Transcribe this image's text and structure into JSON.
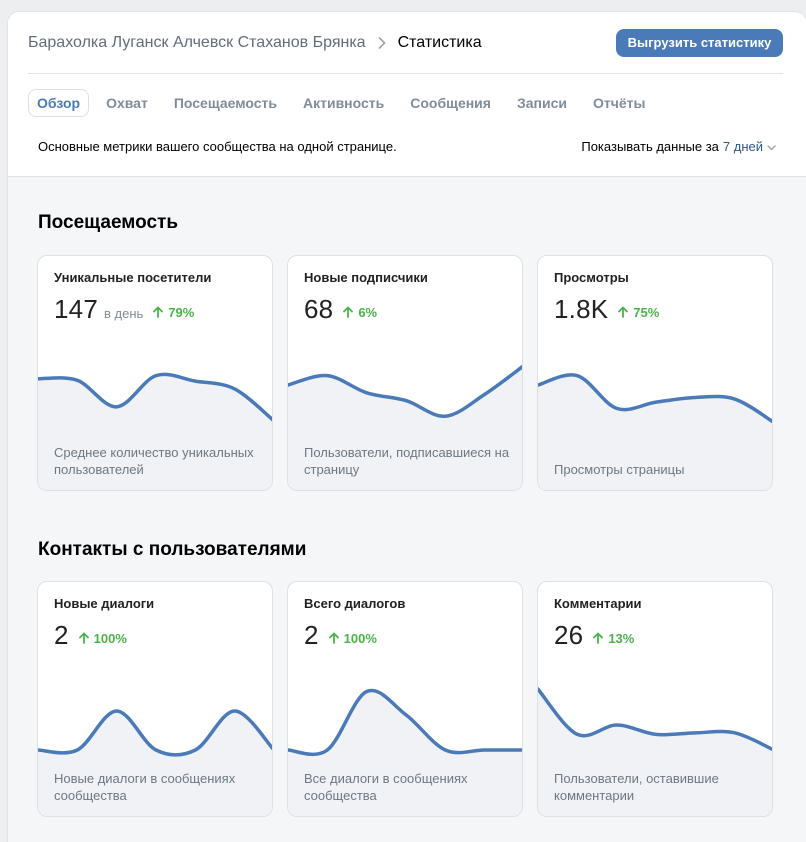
{
  "breadcrumb": {
    "group": "Барахолка Луганск Алчевск Стаханов Брянка",
    "current": "Статистика"
  },
  "export_label": "Выгрузить статистику",
  "tabs": [
    {
      "label": "Обзор",
      "active": true
    },
    {
      "label": "Охват",
      "active": false
    },
    {
      "label": "Посещаемость",
      "active": false
    },
    {
      "label": "Активность",
      "active": false
    },
    {
      "label": "Сообщения",
      "active": false
    },
    {
      "label": "Записи",
      "active": false
    },
    {
      "label": "Отчёты",
      "active": false
    }
  ],
  "description": "Основные метрики вашего сообщества на одной странице.",
  "period": {
    "label": "Показывать данные за",
    "value": "7 дней"
  },
  "colors": {
    "accent": "#4a7ab8",
    "positive": "#4bb34b",
    "line": "#4a7ab8",
    "area": "#f0f2f5"
  },
  "sections": [
    {
      "title": "Посещаемость",
      "cards": [
        {
          "title": "Уникальные посетители",
          "value": "147",
          "unit": "в день",
          "change": "79%",
          "caption": "Среднее количество уникальных пользователей",
          "trend": [
            0.58,
            0.56,
            0.22,
            0.62,
            0.55,
            0.45,
            0.04
          ]
        },
        {
          "title": "Новые подписчики",
          "value": "68",
          "unit": "",
          "change": "6%",
          "caption": "Пользователи, подписавшиеся на страницу",
          "trend": [
            0.5,
            0.62,
            0.4,
            0.3,
            0.1,
            0.38,
            0.75
          ]
        },
        {
          "title": "Просмотры",
          "value": "1.8K",
          "unit": "",
          "change": "75%",
          "caption": "Просмотры страницы",
          "trend": [
            0.5,
            0.62,
            0.2,
            0.28,
            0.34,
            0.32,
            0.02
          ]
        }
      ]
    },
    {
      "title": "Контакты с пользователями",
      "cards": [
        {
          "title": "Новые диалоги",
          "value": "2",
          "unit": "",
          "change": "100%",
          "caption": "Новые диалоги в сообщениях сообщества",
          "trend": [
            0.0,
            0.0,
            0.5,
            0.0,
            0.0,
            0.5,
            0.0
          ]
        },
        {
          "title": "Всего диалогов",
          "value": "2",
          "unit": "",
          "change": "100%",
          "caption": "Все диалоги в сообщениях сообщества",
          "trend": [
            0.0,
            0.0,
            0.75,
            0.45,
            0.0,
            0.0,
            0.0
          ]
        },
        {
          "title": "Комментарии",
          "value": "26",
          "unit": "",
          "change": "13%",
          "caption": "Пользователи, оставившие комментарии",
          "trend": [
            0.78,
            0.2,
            0.32,
            0.2,
            0.22,
            0.22,
            0.0
          ]
        }
      ]
    }
  ]
}
